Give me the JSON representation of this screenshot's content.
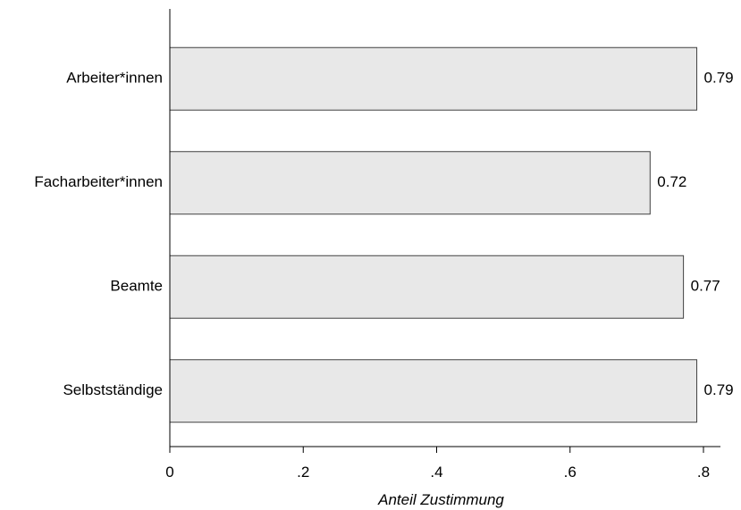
{
  "chart_data": {
    "type": "bar",
    "orientation": "horizontal",
    "categories": [
      "Arbeiter*innen",
      "Facharbeiter*innen",
      "Beamte",
      "Selbstständige"
    ],
    "values": [
      0.79,
      0.72,
      0.77,
      0.79
    ],
    "value_labels": [
      "0.79",
      "0.72",
      "0.77",
      "0.79"
    ],
    "xlabel": "Anteil Zustimmung",
    "ylabel": "",
    "xlim": [
      0,
      0.8
    ],
    "x_ticks": [
      0,
      0.2,
      0.4,
      0.6,
      0.8
    ],
    "x_tick_labels": [
      "0",
      ".2",
      ".4",
      ".6",
      ".8"
    ],
    "grid": false,
    "colors": {
      "bar_fill": "#e8e8e8",
      "bar_stroke": "#404040"
    }
  }
}
